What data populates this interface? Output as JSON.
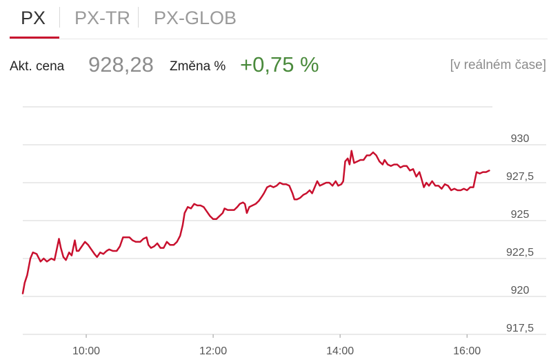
{
  "tabs": [
    {
      "label": "PX",
      "active": true
    },
    {
      "label": "PX-TR",
      "active": false
    },
    {
      "label": "PX-GLOB",
      "active": false
    }
  ],
  "quote": {
    "price_label": "Akt. cena",
    "price_value": "928,28",
    "change_label": "Změna %",
    "change_value": "+0,75 %",
    "realtime_label": "[v reálném čase]"
  },
  "colors": {
    "line": "#c8102e",
    "positive": "#4a8a3c",
    "active_tab_underline": "#c8102e"
  },
  "chart_data": {
    "type": "line",
    "title": "",
    "xlabel": "",
    "ylabel": "",
    "x_unit": "time (hours)",
    "xlim": [
      9.0,
      16.4
    ],
    "ylim": [
      917.5,
      932.5
    ],
    "grid": true,
    "x_ticks": [
      {
        "value": 10,
        "label": "10:00"
      },
      {
        "value": 12,
        "label": "12:00"
      },
      {
        "value": 14,
        "label": "14:00"
      },
      {
        "value": 16,
        "label": "16:00"
      }
    ],
    "y_ticks": [
      {
        "value": 917.5,
        "label": "917,5"
      },
      {
        "value": 920,
        "label": "920"
      },
      {
        "value": 922.5,
        "label": "922,5"
      },
      {
        "value": 925,
        "label": "925"
      },
      {
        "value": 927.5,
        "label": "927,5"
      },
      {
        "value": 930,
        "label": "930"
      }
    ],
    "series": [
      {
        "values": [
          [
            9.0,
            920.2
          ],
          [
            9.03,
            920.9
          ],
          [
            9.07,
            921.4
          ],
          [
            9.12,
            922.5
          ],
          [
            9.16,
            922.9
          ],
          [
            9.22,
            922.8
          ],
          [
            9.28,
            922.3
          ],
          [
            9.33,
            922.5
          ],
          [
            9.38,
            922.3
          ],
          [
            9.45,
            922.5
          ],
          [
            9.5,
            922.4
          ],
          [
            9.53,
            923.0
          ],
          [
            9.57,
            923.8
          ],
          [
            9.6,
            923.2
          ],
          [
            9.64,
            922.6
          ],
          [
            9.68,
            922.4
          ],
          [
            9.73,
            922.9
          ],
          [
            9.77,
            922.7
          ],
          [
            9.82,
            923.7
          ],
          [
            9.85,
            923.0
          ],
          [
            9.88,
            923.0
          ],
          [
            9.93,
            923.3
          ],
          [
            9.98,
            923.6
          ],
          [
            10.03,
            923.4
          ],
          [
            10.08,
            923.1
          ],
          [
            10.13,
            922.8
          ],
          [
            10.17,
            922.6
          ],
          [
            10.22,
            922.9
          ],
          [
            10.27,
            922.8
          ],
          [
            10.32,
            923.0
          ],
          [
            10.36,
            923.1
          ],
          [
            10.42,
            923.0
          ],
          [
            10.48,
            923.0
          ],
          [
            10.53,
            923.3
          ],
          [
            10.58,
            923.9
          ],
          [
            10.63,
            923.9
          ],
          [
            10.68,
            923.9
          ],
          [
            10.73,
            923.7
          ],
          [
            10.78,
            923.6
          ],
          [
            10.85,
            923.6
          ],
          [
            10.9,
            923.8
          ],
          [
            10.95,
            923.9
          ],
          [
            10.98,
            923.4
          ],
          [
            11.02,
            923.2
          ],
          [
            11.07,
            923.3
          ],
          [
            11.12,
            923.5
          ],
          [
            11.17,
            923.2
          ],
          [
            11.22,
            923.2
          ],
          [
            11.27,
            923.6
          ],
          [
            11.32,
            923.4
          ],
          [
            11.38,
            923.4
          ],
          [
            11.43,
            923.6
          ],
          [
            11.48,
            924.0
          ],
          [
            11.52,
            924.7
          ],
          [
            11.55,
            925.5
          ],
          [
            11.6,
            925.9
          ],
          [
            11.65,
            925.8
          ],
          [
            11.7,
            926.1
          ],
          [
            11.75,
            926.0
          ],
          [
            11.8,
            926.0
          ],
          [
            11.85,
            925.9
          ],
          [
            11.9,
            925.6
          ],
          [
            11.95,
            925.3
          ],
          [
            12.0,
            925.1
          ],
          [
            12.05,
            925.1
          ],
          [
            12.1,
            925.3
          ],
          [
            12.15,
            925.5
          ],
          [
            12.18,
            925.8
          ],
          [
            12.23,
            925.7
          ],
          [
            12.28,
            925.7
          ],
          [
            12.33,
            925.7
          ],
          [
            12.38,
            925.9
          ],
          [
            12.42,
            926.1
          ],
          [
            12.47,
            926.2
          ],
          [
            12.5,
            926.1
          ],
          [
            12.53,
            925.5
          ],
          [
            12.57,
            925.9
          ],
          [
            12.62,
            926.0
          ],
          [
            12.67,
            926.1
          ],
          [
            12.72,
            926.3
          ],
          [
            12.77,
            926.6
          ],
          [
            12.8,
            926.8
          ],
          [
            12.85,
            927.2
          ],
          [
            12.9,
            927.3
          ],
          [
            12.95,
            927.2
          ],
          [
            13.0,
            927.3
          ],
          [
            13.05,
            927.5
          ],
          [
            13.1,
            927.4
          ],
          [
            13.15,
            927.4
          ],
          [
            13.2,
            927.3
          ],
          [
            13.25,
            926.8
          ],
          [
            13.28,
            926.4
          ],
          [
            13.32,
            926.4
          ],
          [
            13.37,
            926.5
          ],
          [
            13.42,
            926.7
          ],
          [
            13.47,
            926.8
          ],
          [
            13.52,
            927.0
          ],
          [
            13.56,
            926.8
          ],
          [
            13.6,
            927.2
          ],
          [
            13.64,
            927.6
          ],
          [
            13.68,
            927.3
          ],
          [
            13.73,
            927.4
          ],
          [
            13.78,
            927.5
          ],
          [
            13.83,
            927.5
          ],
          [
            13.88,
            927.3
          ],
          [
            13.93,
            927.6
          ],
          [
            13.97,
            927.3
          ],
          [
            14.02,
            927.4
          ],
          [
            14.05,
            927.6
          ],
          [
            14.08,
            928.9
          ],
          [
            14.12,
            929.1
          ],
          [
            14.15,
            928.7
          ],
          [
            14.18,
            929.6
          ],
          [
            14.22,
            928.8
          ],
          [
            14.27,
            928.9
          ],
          [
            14.32,
            929.0
          ],
          [
            14.37,
            929.0
          ],
          [
            14.42,
            929.3
          ],
          [
            14.47,
            929.3
          ],
          [
            14.52,
            929.5
          ],
          [
            14.57,
            929.3
          ],
          [
            14.62,
            928.9
          ],
          [
            14.67,
            928.7
          ],
          [
            14.7,
            929.0
          ],
          [
            14.75,
            928.7
          ],
          [
            14.8,
            928.6
          ],
          [
            14.85,
            928.7
          ],
          [
            14.9,
            928.7
          ],
          [
            14.95,
            928.5
          ],
          [
            15.0,
            928.6
          ],
          [
            15.05,
            928.6
          ],
          [
            15.1,
            928.3
          ],
          [
            15.15,
            928.4
          ],
          [
            15.2,
            927.9
          ],
          [
            15.25,
            928.2
          ],
          [
            15.28,
            927.8
          ],
          [
            15.32,
            927.2
          ],
          [
            15.36,
            927.5
          ],
          [
            15.4,
            927.3
          ],
          [
            15.45,
            927.6
          ],
          [
            15.5,
            927.3
          ],
          [
            15.55,
            927.3
          ],
          [
            15.6,
            927.1
          ],
          [
            15.65,
            927.4
          ],
          [
            15.7,
            927.3
          ],
          [
            15.75,
            927.0
          ],
          [
            15.8,
            927.1
          ],
          [
            15.85,
            927.0
          ],
          [
            15.9,
            927.0
          ],
          [
            15.95,
            927.1
          ],
          [
            16.0,
            927.0
          ],
          [
            16.05,
            927.2
          ],
          [
            16.1,
            927.2
          ],
          [
            16.15,
            928.2
          ],
          [
            16.2,
            928.1
          ],
          [
            16.25,
            928.2
          ],
          [
            16.3,
            928.2
          ],
          [
            16.35,
            928.3
          ]
        ]
      }
    ]
  }
}
